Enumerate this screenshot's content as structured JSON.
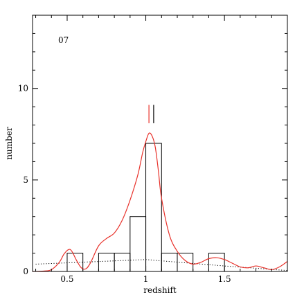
{
  "chart_data": {
    "type": "bar",
    "panel_label": "07",
    "xlabel": "redshift",
    "ylabel": "number",
    "xlim": [
      0.28,
      1.9
    ],
    "ylim": [
      0,
      14
    ],
    "x_ticks": [
      0.5,
      1,
      1.5
    ],
    "x_tick_labels": [
      "0.5",
      "1",
      "1.5"
    ],
    "y_ticks": [
      0,
      5,
      10
    ],
    "y_tick_labels": [
      "0",
      "5",
      "10"
    ],
    "grid": false,
    "legend": "none",
    "histogram": {
      "bin_width": 0.1,
      "bin_starts": [
        0.5,
        0.6,
        0.7,
        0.8,
        0.9,
        1.0,
        1.1,
        1.2,
        1.3,
        1.4,
        1.5,
        1.6,
        1.7
      ],
      "counts": [
        1,
        0,
        1,
        1,
        3,
        7,
        1,
        1,
        0,
        1,
        0,
        0,
        0
      ],
      "color": "#000000"
    },
    "smooth_curve": {
      "color": "#e8312a",
      "x": [
        0.28,
        0.35,
        0.4,
        0.45,
        0.48,
        0.51,
        0.53,
        0.56,
        0.59,
        0.62,
        0.65,
        0.7,
        0.75,
        0.8,
        0.85,
        0.9,
        0.95,
        0.98,
        1.0,
        1.02,
        1.04,
        1.06,
        1.08,
        1.1,
        1.15,
        1.2,
        1.25,
        1.3,
        1.35,
        1.4,
        1.45,
        1.5,
        1.55,
        1.6,
        1.65,
        1.7,
        1.75,
        1.8,
        1.85,
        1.9
      ],
      "y": [
        0.0,
        0.02,
        0.1,
        0.5,
        0.95,
        1.2,
        1.1,
        0.6,
        0.2,
        0.15,
        0.5,
        1.4,
        1.8,
        2.1,
        2.8,
        3.9,
        5.3,
        6.5,
        7.1,
        7.55,
        7.4,
        6.8,
        5.5,
        4.0,
        2.0,
        1.1,
        0.6,
        0.4,
        0.5,
        0.7,
        0.75,
        0.65,
        0.45,
        0.25,
        0.2,
        0.3,
        0.2,
        0.1,
        0.25,
        0.55
      ]
    },
    "background_line": {
      "style": "dotted",
      "color": "#000000",
      "x": [
        0.3,
        1.0,
        1.5,
        1.9
      ],
      "y": [
        0.4,
        0.65,
        0.3,
        0.05
      ]
    },
    "markers": [
      {
        "x": 1.02,
        "y_from": 8.1,
        "y_to": 9.1,
        "color": "#e8312a"
      },
      {
        "x": 1.05,
        "y_from": 8.1,
        "y_to": 9.1,
        "color": "#000000"
      }
    ]
  }
}
